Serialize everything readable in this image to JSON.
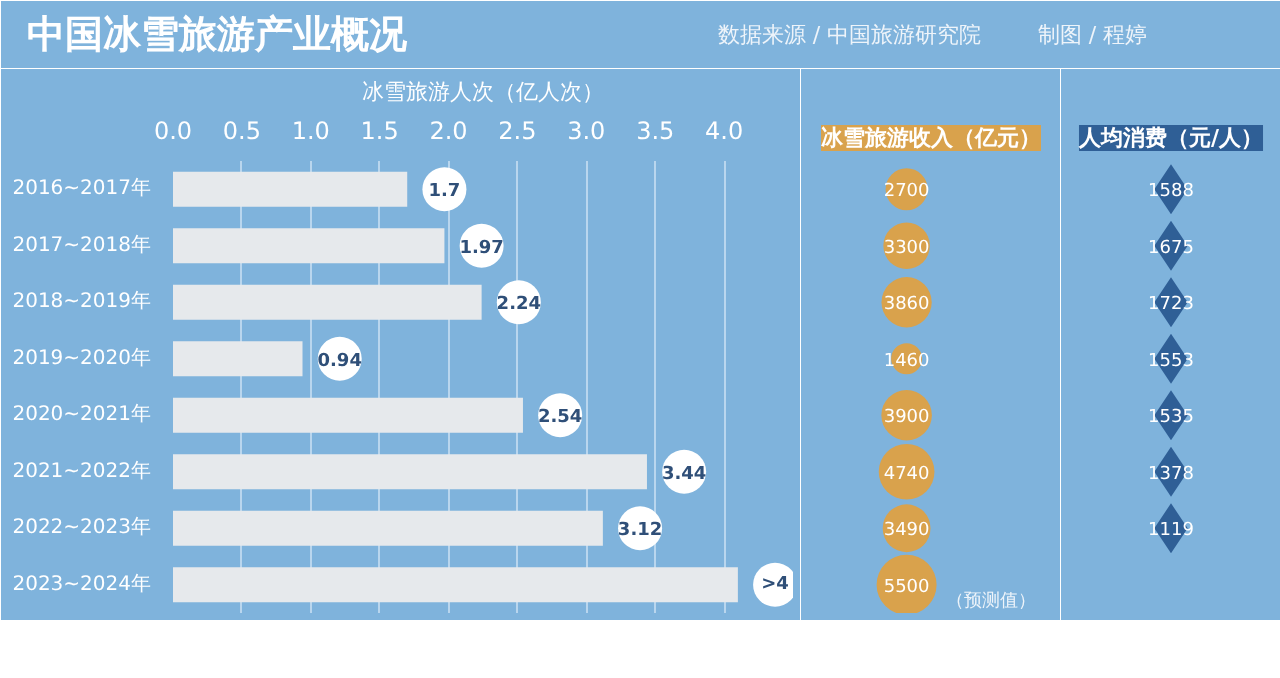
{
  "chart_data": [
    {
      "type": "other",
      "title": "中国冰雪旅游产业概况",
      "annotations": [
        "数据来源 / 中国旅游研究院",
        "制图 / 程婷"
      ]
    },
    {
      "type": "bar",
      "orientation": "horizontal",
      "xlabel": "冰雪旅游人次（亿人次）",
      "categories": [
        "2016~2017年",
        "2017~2018年",
        "2018~2019年",
        "2019~2020年",
        "2020~2021年",
        "2021~2022年",
        "2022~2023年",
        "2023~2024年"
      ],
      "values": [
        1.7,
        1.97,
        2.24,
        0.94,
        2.54,
        3.44,
        3.12,
        4.1
      ],
      "value_labels": [
        "1.7",
        "1.97",
        "2.24",
        "0.94",
        "2.54",
        "3.44",
        "3.12",
        ">4"
      ],
      "color": "#e6e9ec",
      "xlim": [
        0,
        4.5
      ],
      "xticks": [
        {
          "value": 0,
          "label": "0.0"
        },
        0.5,
        {
          "value": 1,
          "label": "1.0"
        },
        1.5,
        {
          "value": 2,
          "label": "2.0"
        },
        2.5,
        {
          "value": 3,
          "label": "3.0"
        },
        3.5,
        {
          "value": 4,
          "label": "4.0"
        }
      ],
      "grid": "x"
    },
    {
      "type": "other",
      "title": "冰雪旅游收入（亿元）",
      "categories": [
        null,
        null,
        null,
        null,
        null,
        null,
        null,
        null
      ],
      "values": [
        2700,
        3300,
        3860,
        1460,
        3900,
        4740,
        3490,
        5500
      ],
      "data_labels": true,
      "color": "#d9a24c",
      "annotations": [
        "（预测值）"
      ]
    },
    {
      "type": "other",
      "title": "人均消费（元/人）",
      "categories": [
        null,
        null,
        null,
        null,
        null,
        null,
        null,
        null
      ],
      "values": [
        1588,
        1675,
        1723,
        1553,
        1535,
        1378,
        1119,
        null
      ],
      "data_labels": true,
      "color": "#2f5f96"
    }
  ]
}
